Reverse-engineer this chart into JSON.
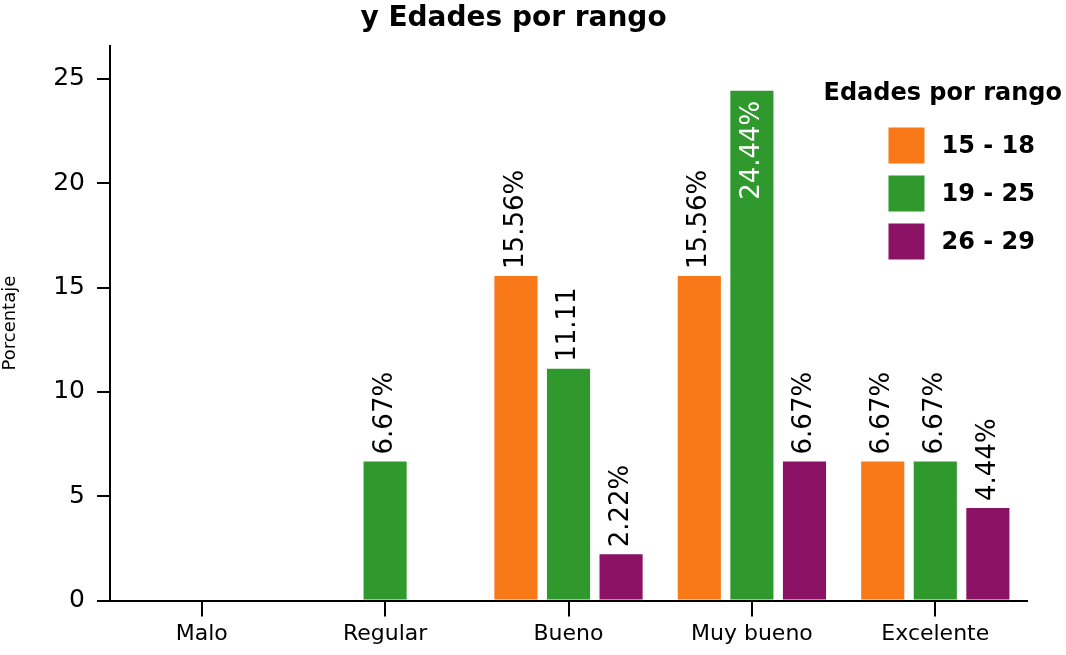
{
  "chart_data": {
    "type": "bar",
    "title": "y Edades por rango",
    "ylabel": "Porcentaje",
    "legend_title": "Edades por rango",
    "legend": "top right",
    "categories": [
      "Malo",
      "Regular",
      "Bueno",
      "Muy bueno",
      "Excelente"
    ],
    "series": [
      {
        "name": "15 - 18",
        "color": "#f97818",
        "values": [
          null,
          null,
          15.56,
          15.56,
          6.67
        ],
        "value_labels": [
          null,
          null,
          "15.56%",
          "15.56%",
          "6.67%"
        ]
      },
      {
        "name": "19 - 25",
        "color": "#2f992d",
        "values": [
          null,
          6.67,
          11.11,
          24.44,
          6.67
        ],
        "value_labels": [
          null,
          "6.67%",
          "11.11",
          "24.44%",
          "6.67%"
        ]
      },
      {
        "name": "26 - 29",
        "color": "#8a1164",
        "values": [
          null,
          null,
          2.22,
          6.67,
          4.44
        ],
        "value_labels": [
          null,
          null,
          "2.22%",
          "6.67%",
          "4.44%"
        ]
      }
    ],
    "ylim": [
      0,
      26.6
    ],
    "yticks": [
      0,
      5,
      10,
      15,
      20,
      25
    ]
  }
}
